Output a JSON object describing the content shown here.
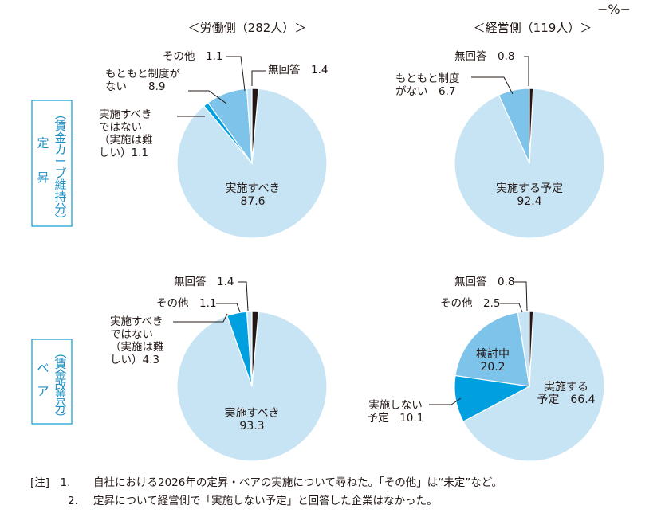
{
  "unit_label": "−%−",
  "columns": [
    "＜労働側（282人）＞",
    "＜経営側（119人）＞"
  ],
  "rows": [
    {
      "bracket_open": "︵",
      "bracket_close": "︶",
      "sub": [
        "賃",
        "金",
        "カ",
        "ー",
        "ブ",
        "維",
        "持",
        "分"
      ],
      "main": [
        "定",
        "昇"
      ]
    },
    {
      "bracket_open": "︵",
      "bracket_close": "︶",
      "sub": [
        "賃",
        "金",
        "改",
        "善",
        "分"
      ],
      "main": [
        "ベ",
        "ア"
      ]
    }
  ],
  "colors": {
    "light": "#c7e4f5",
    "mid": "#7ec4ea",
    "dark": "#00a0e0",
    "black": "#231815",
    "edge": "#ffffff",
    "accent": "#1ba3d9"
  },
  "chart_data": [
    {
      "type": "pie",
      "title": "＜労働側（282人）＞",
      "row": "定昇（賃金カーブ維持分）",
      "slices": [
        {
          "name": "実施すべき",
          "value": 87.6,
          "color": "#c7e4f5",
          "label_lines": [
            "実施すべき",
            "87.6"
          ]
        },
        {
          "name": "実施すべきではない（実施は難しい）",
          "value": 1.1,
          "color": "#00a0e0",
          "label_lines": [
            "実施すべき",
            "ではない",
            "（実施は難",
            "しい）1.1"
          ]
        },
        {
          "name": "もともと制度がない",
          "value": 8.9,
          "color": "#7ec4ea",
          "label_lines": [
            "もともと制度が",
            "ない　　8.9"
          ]
        },
        {
          "name": "その他",
          "value": 1.1,
          "color": "#c7e4f5",
          "label_lines": [
            "その他　1.1"
          ]
        },
        {
          "name": "無回答",
          "value": 1.4,
          "color": "#231815",
          "label_lines": [
            "無回答　1.4"
          ]
        }
      ]
    },
    {
      "type": "pie",
      "title": "＜経営側（119人）＞",
      "row": "定昇（賃金カーブ維持分）",
      "slices": [
        {
          "name": "実施する予定",
          "value": 92.4,
          "color": "#c7e4f5",
          "label_lines": [
            "実施する予定",
            "92.4"
          ]
        },
        {
          "name": "もともと制度がない",
          "value": 6.7,
          "color": "#7ec4ea",
          "label_lines": [
            "もともと制度",
            "がない　6.7"
          ]
        },
        {
          "name": "無回答",
          "value": 0.8,
          "color": "#231815",
          "label_lines": [
            "無回答　0.8"
          ]
        }
      ]
    },
    {
      "type": "pie",
      "title": "＜労働側（282人）＞",
      "row": "ベア（賃金改善分）",
      "slices": [
        {
          "name": "実施すべき",
          "value": 93.3,
          "color": "#c7e4f5",
          "label_lines": [
            "実施すべき",
            "93.3"
          ]
        },
        {
          "name": "実施すべきではない（実施は難しい）",
          "value": 4.3,
          "color": "#00a0e0",
          "label_lines": [
            "実施すべき",
            "ではない",
            "（実施は難",
            "しい）4.3"
          ]
        },
        {
          "name": "その他",
          "value": 1.1,
          "color": "#c7e4f5",
          "label_lines": [
            "その他　1.1"
          ]
        },
        {
          "name": "無回答",
          "value": 1.4,
          "color": "#231815",
          "label_lines": [
            "無回答　1.4"
          ]
        }
      ]
    },
    {
      "type": "pie",
      "title": "＜経営側（119人）＞",
      "row": "ベア（賃金改善分）",
      "slices": [
        {
          "name": "実施する予定",
          "value": 66.4,
          "color": "#c7e4f5",
          "label_lines": [
            "実施する",
            "予定　66.4"
          ]
        },
        {
          "name": "実施しない予定",
          "value": 10.1,
          "color": "#00a0e0",
          "label_lines": [
            "実施しない",
            "予定　10.1"
          ]
        },
        {
          "name": "検討中",
          "value": 20.2,
          "color": "#7ec4ea",
          "label_lines": [
            "検討中",
            "20.2"
          ]
        },
        {
          "name": "その他",
          "value": 2.5,
          "color": "#c7e4f5",
          "label_lines": [
            "その他　2.5"
          ]
        },
        {
          "name": "無回答",
          "value": 0.8,
          "color": "#231815",
          "label_lines": [
            "無回答　0.8"
          ]
        }
      ]
    }
  ],
  "notes": [
    {
      "num": "[注]　1.",
      "text": "自社における2026年の定昇・ベアの実施について尋ねた。「その他」は“未定”など。"
    },
    {
      "num": "2.",
      "text": "定昇について経営側で「実施しない予定」と回答した企業はなかった。"
    }
  ]
}
